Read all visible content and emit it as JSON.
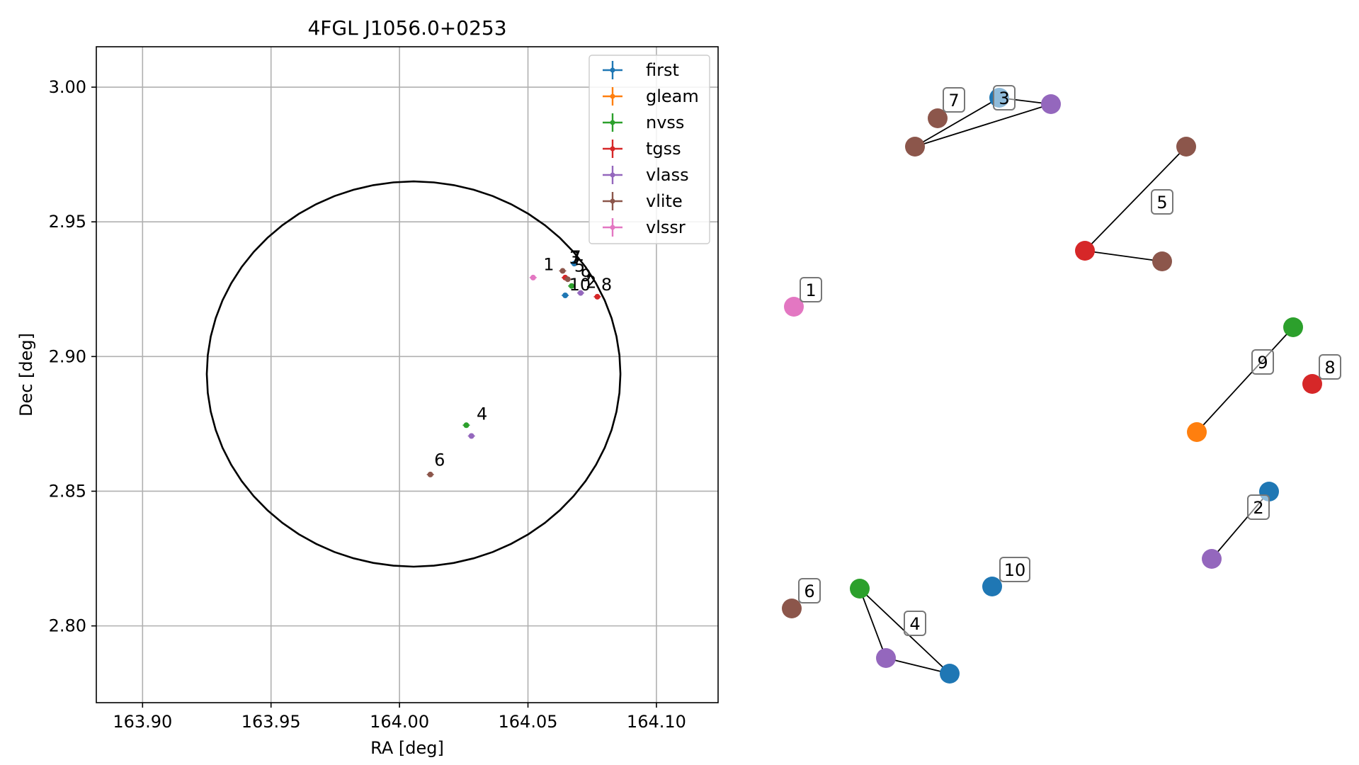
{
  "chart_data": [
    {
      "type": "scatter",
      "title": "4FGL J1056.0+0253",
      "xlabel": "RA [deg]",
      "ylabel": "Dec [deg]",
      "xlim": [
        163.882,
        164.124
      ],
      "ylim": [
        2.7715,
        3.015
      ],
      "xticks": [
        163.9,
        163.95,
        164.0,
        164.05,
        164.1
      ],
      "xtick_labels": [
        "163.90",
        "163.95",
        "164.00",
        "164.05",
        "164.10"
      ],
      "yticks": [
        2.8,
        2.85,
        2.9,
        2.95,
        3.0
      ],
      "ytick_labels": [
        "2.80",
        "2.85",
        "2.90",
        "2.95",
        "3.00"
      ],
      "grid": true,
      "legend_position": "top-right",
      "ellipse": {
        "center": [
          164.0055,
          2.8935
        ],
        "semi_axes": [
          0.0805,
          0.0715
        ]
      },
      "series": [
        {
          "name": "first",
          "color": "#1f77b4",
          "points": [
            [
              164.0645,
              2.9227
            ],
            [
              164.068,
              2.9345
            ]
          ]
        },
        {
          "name": "gleam",
          "color": "#ff7f0e",
          "points": []
        },
        {
          "name": "nvss",
          "color": "#2ca02c",
          "points": [
            [
              164.067,
              2.9262
            ],
            [
              164.026,
              2.8745
            ]
          ]
        },
        {
          "name": "tgss",
          "color": "#d62728",
          "points": [
            [
              164.0645,
              2.9293
            ],
            [
              164.077,
              2.9222
            ]
          ]
        },
        {
          "name": "vlass",
          "color": "#9467bd",
          "points": [
            [
              164.0705,
              2.9236
            ],
            [
              164.028,
              2.8705
            ]
          ]
        },
        {
          "name": "vlite",
          "color": "#8c564b",
          "points": [
            [
              164.0635,
              2.9318
            ],
            [
              164.0655,
              2.9287
            ],
            [
              164.012,
              2.8562
            ]
          ]
        },
        {
          "name": "vlssr",
          "color": "#e377c2",
          "points": [
            [
              164.052,
              2.9293
            ]
          ]
        }
      ],
      "annotations": [
        {
          "text": "1",
          "at": [
            164.056,
            2.932
          ]
        },
        {
          "text": "4",
          "at": [
            164.03,
            2.8765
          ]
        },
        {
          "text": "6",
          "at": [
            164.0135,
            2.8595
          ]
        },
        {
          "text": "8",
          "at": [
            164.0785,
            2.9245
          ]
        },
        {
          "text": "10",
          "at": [
            164.066,
            2.9245
          ]
        },
        {
          "text": "2",
          "at": [
            164.0725,
            2.9255
          ]
        },
        {
          "text": "9",
          "at": [
            164.0705,
            2.928
          ]
        },
        {
          "text": "5",
          "at": [
            164.068,
            2.9315
          ]
        },
        {
          "text": "3",
          "at": [
            164.066,
            2.9345
          ]
        },
        {
          "text": "7",
          "at": [
            164.0665,
            2.9348
          ]
        }
      ]
    },
    {
      "type": "scatter",
      "title": "",
      "description_labels": [
        "1",
        "2",
        "3",
        "4",
        "5",
        "6",
        "7",
        "8",
        "9",
        "10"
      ],
      "nodes": [
        {
          "id": "1a",
          "label": "1",
          "color": "#e377c2"
        },
        {
          "id": "2a",
          "label": "2",
          "color": "#1f77b4"
        },
        {
          "id": "2b",
          "label": "",
          "color": "#9467bd"
        },
        {
          "id": "3a",
          "label": "3",
          "color": "#1f77b4"
        },
        {
          "id": "3b",
          "label": "",
          "color": "#9467bd"
        },
        {
          "id": "3c",
          "label": "",
          "color": "#8c564b"
        },
        {
          "id": "4a",
          "label": "4",
          "color": "#2ca02c"
        },
        {
          "id": "4b",
          "label": "",
          "color": "#9467bd"
        },
        {
          "id": "4c",
          "label": "",
          "color": "#1f77b4"
        },
        {
          "id": "5a",
          "label": "5",
          "color": "#8c564b"
        },
        {
          "id": "5b",
          "label": "",
          "color": "#d62728"
        },
        {
          "id": "5c",
          "label": "",
          "color": "#8c564b"
        },
        {
          "id": "6a",
          "label": "6",
          "color": "#8c564b"
        },
        {
          "id": "7a",
          "label": "7",
          "color": "#8c564b"
        },
        {
          "id": "8a",
          "label": "8",
          "color": "#d62728"
        },
        {
          "id": "9a",
          "label": "9",
          "color": "#2ca02c"
        },
        {
          "id": "9b",
          "label": "",
          "color": "#ff7f0e"
        },
        {
          "id": "10a",
          "label": "10",
          "color": "#1f77b4"
        }
      ]
    }
  ]
}
